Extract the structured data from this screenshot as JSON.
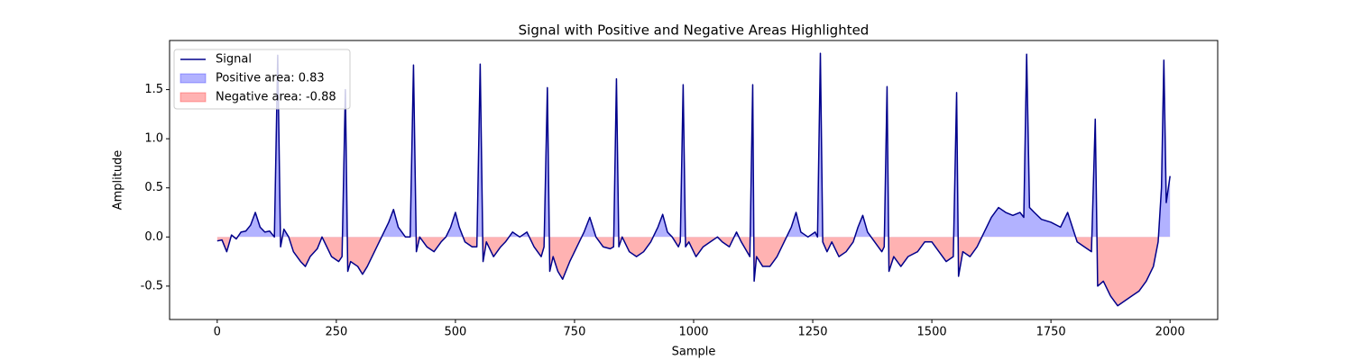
{
  "chart_data": {
    "type": "line",
    "title": "Signal with Positive and Negative Areas Highlighted",
    "x_label": "Sample",
    "y_label": "Amplitude",
    "x": [
      0,
      10,
      20,
      30,
      40,
      50,
      60,
      70,
      80,
      90,
      100,
      110,
      120,
      127,
      133,
      140,
      150,
      160,
      175,
      185,
      195,
      210,
      220,
      230,
      240,
      255,
      262,
      269,
      274,
      280,
      295,
      305,
      315,
      330,
      345,
      360,
      370,
      380,
      395,
      405,
      412,
      418,
      425,
      440,
      455,
      470,
      480,
      490,
      500,
      508,
      520,
      535,
      545,
      552,
      558,
      565,
      580,
      595,
      605,
      620,
      635,
      650,
      665,
      680,
      686,
      693,
      698,
      705,
      715,
      725,
      740,
      755,
      770,
      782,
      795,
      810,
      825,
      832,
      838,
      843,
      850,
      865,
      880,
      895,
      910,
      925,
      935,
      945,
      955,
      968,
      972,
      978,
      983,
      990,
      1005,
      1020,
      1035,
      1050,
      1060,
      1075,
      1090,
      1100,
      1112,
      1118,
      1124,
      1127,
      1132,
      1145,
      1160,
      1175,
      1190,
      1205,
      1215,
      1225,
      1240,
      1255,
      1260,
      1266,
      1271,
      1280,
      1290,
      1305,
      1320,
      1335,
      1345,
      1355,
      1365,
      1380,
      1395,
      1400,
      1406,
      1410,
      1420,
      1435,
      1450,
      1470,
      1485,
      1500,
      1515,
      1530,
      1545,
      1552,
      1556,
      1565,
      1580,
      1595,
      1610,
      1625,
      1640,
      1655,
      1670,
      1685,
      1693,
      1699,
      1705,
      1715,
      1730,
      1750,
      1770,
      1785,
      1795,
      1805,
      1820,
      1835,
      1843,
      1848,
      1860,
      1875,
      1890,
      1905,
      1920,
      1935,
      1950,
      1965,
      1975,
      1982,
      1987,
      1992,
      2000
    ],
    "series": [
      {
        "name": "Signal",
        "color": "#00008b",
        "values": [
          -0.04,
          -0.03,
          -0.15,
          0.02,
          -0.02,
          0.05,
          0.06,
          0.12,
          0.25,
          0.1,
          0.05,
          0.06,
          0.0,
          1.85,
          -0.1,
          0.08,
          0.0,
          -0.15,
          -0.25,
          -0.3,
          -0.2,
          -0.12,
          0.0,
          -0.1,
          -0.2,
          -0.25,
          -0.2,
          1.5,
          -0.35,
          -0.25,
          -0.3,
          -0.38,
          -0.3,
          -0.15,
          0.0,
          0.15,
          0.28,
          0.1,
          0.0,
          0.0,
          1.75,
          -0.15,
          0.0,
          -0.1,
          -0.15,
          -0.05,
          0.0,
          0.1,
          0.25,
          0.1,
          -0.05,
          -0.1,
          -0.1,
          1.76,
          -0.25,
          -0.05,
          -0.2,
          -0.1,
          -0.05,
          0.05,
          0.0,
          0.05,
          -0.1,
          -0.2,
          -0.1,
          1.52,
          -0.35,
          -0.2,
          -0.35,
          -0.43,
          -0.25,
          -0.1,
          0.05,
          0.2,
          0.0,
          -0.1,
          -0.12,
          -0.1,
          1.61,
          -0.1,
          0.0,
          -0.15,
          -0.2,
          -0.15,
          -0.05,
          0.1,
          0.23,
          0.05,
          0.0,
          -0.1,
          -0.05,
          1.55,
          -0.1,
          -0.05,
          -0.2,
          -0.1,
          -0.05,
          0.0,
          -0.05,
          -0.1,
          0.05,
          -0.05,
          -0.15,
          -0.2,
          1.55,
          -0.45,
          -0.2,
          -0.3,
          -0.3,
          -0.2,
          -0.05,
          0.1,
          0.25,
          0.05,
          0.0,
          0.05,
          0.0,
          1.87,
          -0.05,
          -0.15,
          -0.05,
          -0.2,
          -0.15,
          -0.05,
          0.1,
          0.22,
          0.05,
          -0.05,
          -0.15,
          -0.1,
          1.53,
          -0.35,
          -0.2,
          -0.3,
          -0.2,
          -0.15,
          -0.05,
          -0.05,
          -0.15,
          -0.25,
          -0.2,
          1.47,
          -0.4,
          -0.15,
          -0.2,
          -0.1,
          0.05,
          0.2,
          0.3,
          0.25,
          0.22,
          0.25,
          0.2,
          1.86,
          0.3,
          0.25,
          0.18,
          0.15,
          0.1,
          0.25,
          0.1,
          -0.05,
          -0.1,
          -0.15,
          1.2,
          -0.5,
          -0.45,
          -0.6,
          -0.7,
          -0.65,
          -0.6,
          -0.55,
          -0.45,
          -0.3,
          -0.05,
          0.5,
          1.8,
          0.35,
          0.62
        ]
      }
    ],
    "positive_fill": {
      "name": "Positive area: 0.83",
      "color": "#0000ff"
    },
    "negative_fill": {
      "name": "Negative area: -0.88",
      "color": "#ff0000"
    },
    "fill_opacity": 0.3,
    "xlim": [
      -100,
      2100
    ],
    "xticks": [
      0,
      250,
      500,
      750,
      1000,
      1250,
      1500,
      1750,
      2000
    ],
    "ylim": [
      -0.84,
      2.0
    ],
    "yticks": [
      -0.5,
      {
        "value": 0,
        "label": "0.0"
      },
      0.5,
      {
        "value": 1,
        "label": "1.0"
      },
      1.5
    ],
    "legend": "upper left"
  }
}
